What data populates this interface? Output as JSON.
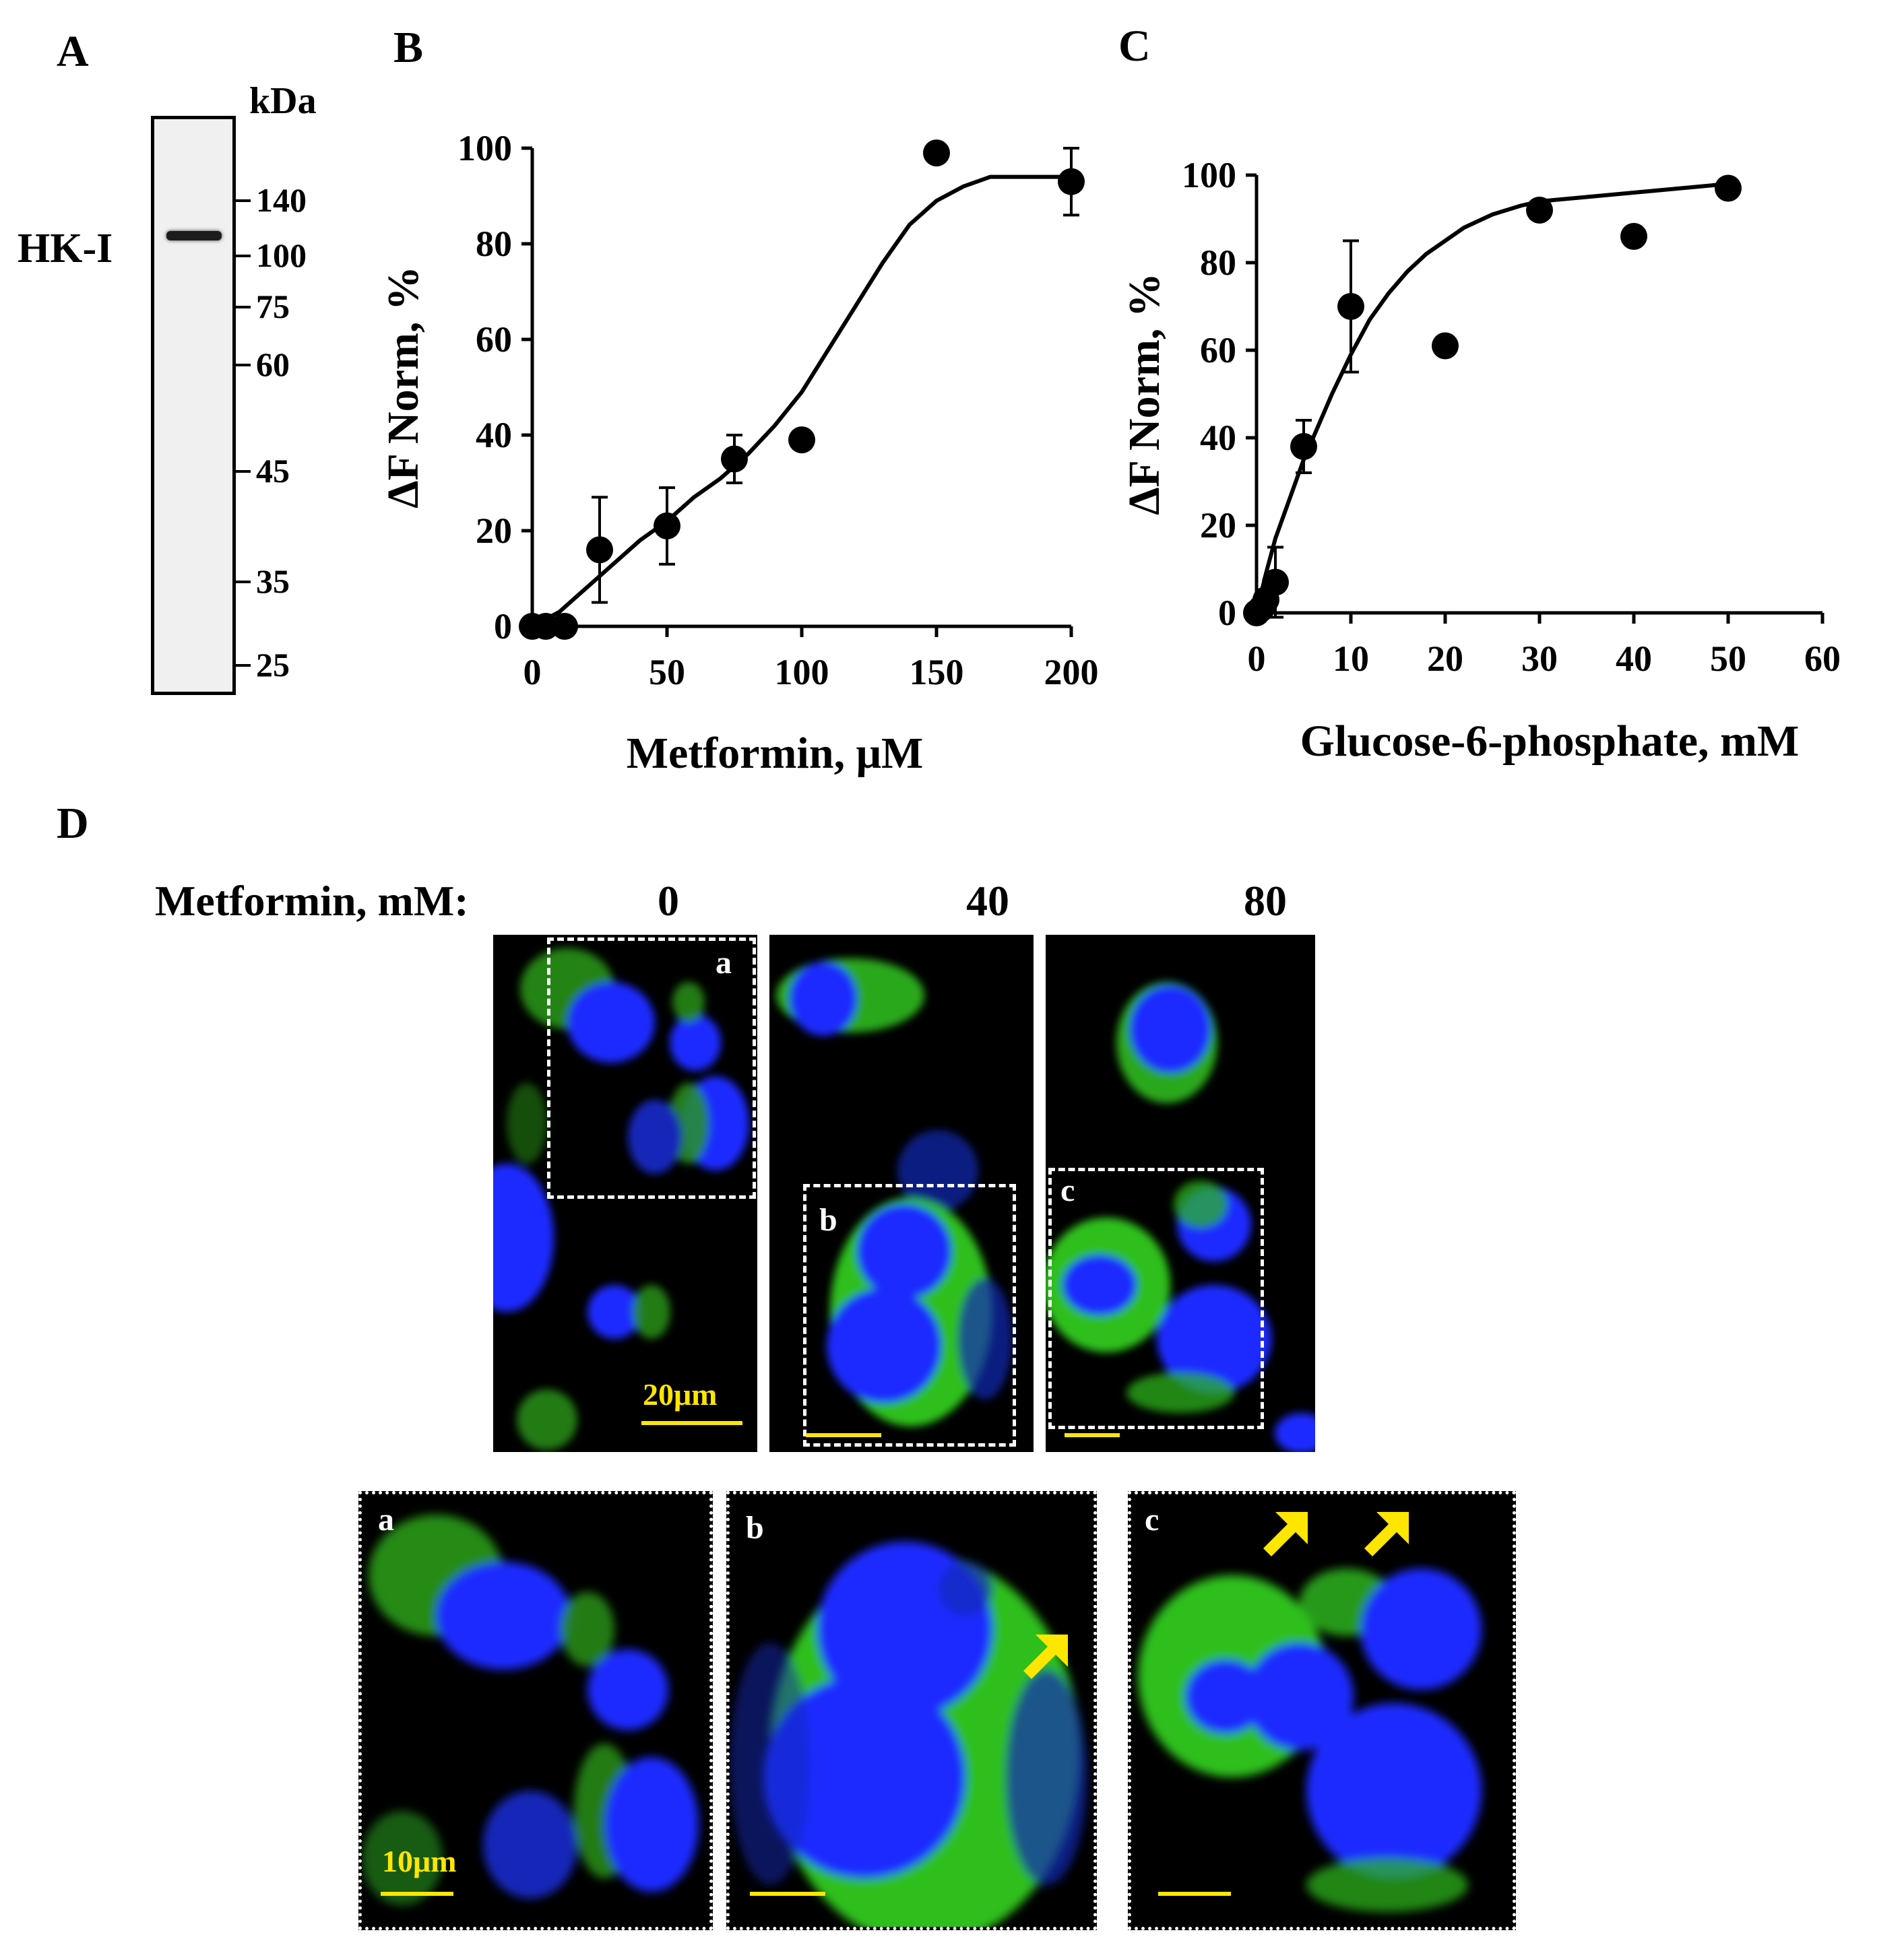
{
  "panels": {
    "A": {
      "letter": "A",
      "unit_label": "kDa",
      "band_label": "HK-I",
      "markers": [
        "140",
        "100",
        "75",
        "60",
        "45",
        "35",
        "25"
      ]
    },
    "B": {
      "letter": "B"
    },
    "C": {
      "letter": "C"
    },
    "D": {
      "letter": "D",
      "row_label": "Metformin, mM:",
      "concentrations": [
        "0",
        "40",
        "80"
      ],
      "scale_bar_top": "20μm",
      "scale_bar_bottom": "10μm",
      "subpanels": [
        "a",
        "b",
        "c"
      ],
      "colors": {
        "nucleus": "#1a2cff",
        "signal": "#34ff2a",
        "scale_bar": "#ffe600",
        "arrow": "#ffe600"
      }
    }
  },
  "chart_data": [
    {
      "panel": "B",
      "type": "scatter",
      "xlabel": "Metformin, μM",
      "ylabel": "ΔF Norm, %",
      "xlim": [
        0,
        200
      ],
      "ylim": [
        0,
        100
      ],
      "xticks": [
        "0",
        "50",
        "100",
        "150",
        "200"
      ],
      "yticks": [
        "0",
        "20",
        "40",
        "60",
        "80",
        "100"
      ],
      "points": [
        {
          "x": 0,
          "y": 0,
          "err": 0
        },
        {
          "x": 5,
          "y": 0,
          "err": 0
        },
        {
          "x": 12,
          "y": 0,
          "err": 0
        },
        {
          "x": 25,
          "y": 16,
          "err": 11
        },
        {
          "x": 50,
          "y": 21,
          "err": 8
        },
        {
          "x": 75,
          "y": 35,
          "err": 5
        },
        {
          "x": 100,
          "y": 39,
          "err": 0
        },
        {
          "x": 150,
          "y": 99,
          "err": 0
        },
        {
          "x": 200,
          "y": 93,
          "err": 7
        }
      ],
      "fit": [
        [
          0,
          0
        ],
        [
          10,
          3
        ],
        [
          20,
          8
        ],
        [
          30,
          13
        ],
        [
          40,
          18
        ],
        [
          50,
          22
        ],
        [
          60,
          27
        ],
        [
          70,
          31
        ],
        [
          80,
          36
        ],
        [
          90,
          42
        ],
        [
          100,
          49
        ],
        [
          110,
          58
        ],
        [
          120,
          67
        ],
        [
          130,
          76
        ],
        [
          140,
          84
        ],
        [
          150,
          89
        ],
        [
          160,
          92
        ],
        [
          170,
          94
        ],
        [
          180,
          94
        ],
        [
          190,
          94
        ],
        [
          200,
          94
        ]
      ]
    },
    {
      "panel": "C",
      "type": "scatter",
      "xlabel": "Glucose-6-phosphate, mM",
      "ylabel": "ΔF Norm, %",
      "xlim": [
        0,
        60
      ],
      "ylim": [
        0,
        100
      ],
      "xticks": [
        "0",
        "10",
        "20",
        "30",
        "40",
        "50",
        "60"
      ],
      "yticks": [
        "0",
        "20",
        "40",
        "60",
        "80",
        "100"
      ],
      "points": [
        {
          "x": 0,
          "y": 0,
          "err": 0
        },
        {
          "x": 0.5,
          "y": 1,
          "err": 0
        },
        {
          "x": 1,
          "y": 3,
          "err": 0
        },
        {
          "x": 2,
          "y": 7,
          "err": 8
        },
        {
          "x": 5,
          "y": 38,
          "err": 6
        },
        {
          "x": 10,
          "y": 70,
          "err": 15
        },
        {
          "x": 20,
          "y": 61,
          "err": 0
        },
        {
          "x": 30,
          "y": 92,
          "err": 0
        },
        {
          "x": 40,
          "y": 86,
          "err": 0
        },
        {
          "x": 50,
          "y": 97,
          "err": 0
        }
      ],
      "fit": [
        [
          0,
          0
        ],
        [
          1,
          9
        ],
        [
          2,
          17
        ],
        [
          3,
          23
        ],
        [
          4,
          29
        ],
        [
          5,
          35
        ],
        [
          6,
          40
        ],
        [
          8,
          50
        ],
        [
          10,
          59
        ],
        [
          12,
          67
        ],
        [
          14,
          73
        ],
        [
          16,
          78
        ],
        [
          18,
          82
        ],
        [
          20,
          85
        ],
        [
          22,
          88
        ],
        [
          25,
          91
        ],
        [
          28,
          93
        ],
        [
          30,
          94
        ],
        [
          35,
          95
        ],
        [
          40,
          96
        ],
        [
          45,
          97
        ],
        [
          50,
          98
        ]
      ]
    }
  ]
}
